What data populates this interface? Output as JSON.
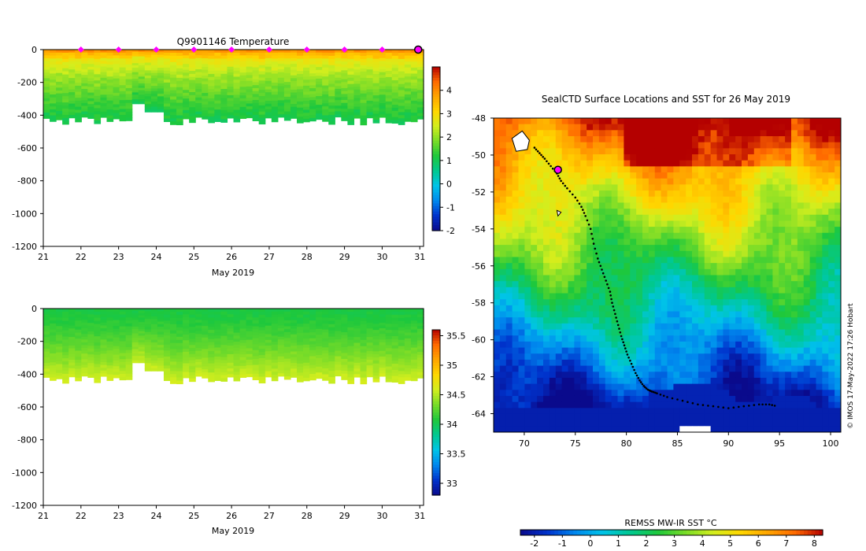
{
  "colors": {
    "temp_scale": [
      "#0a0a8c",
      "#0033cc",
      "#0088ee",
      "#00c4e8",
      "#00c890",
      "#1ec83c",
      "#78dc28",
      "#d2ee1e",
      "#ffd700",
      "#ffa500",
      "#ff6a00",
      "#b40000"
    ],
    "marker": "#ff00ff"
  },
  "chart_data": [
    {
      "type": "heatmap",
      "title": "Q9901146  Temperature",
      "xlabel": "May 2019",
      "ylabel": "",
      "x_ticks": [
        "21",
        "22",
        "23",
        "24",
        "25",
        "26",
        "27",
        "28",
        "29",
        "30",
        "31"
      ],
      "y_ticks": [
        "0",
        "-200",
        "-400",
        "-600",
        "-800",
        "-1000",
        "-1200"
      ],
      "xlim": [
        21,
        31.1
      ],
      "ylim": [
        -1200,
        0
      ],
      "colorbar_ticks": [
        "4",
        "3",
        "2",
        "1",
        "0",
        "-1",
        "-2"
      ],
      "colorbar_range": [
        -2,
        5
      ],
      "profile_markers": [
        22,
        23,
        24,
        25,
        26,
        27,
        28,
        29,
        30
      ],
      "current_marker": 31
    },
    {
      "type": "heatmap",
      "title": "",
      "xlabel": "May 2019",
      "ylabel": "",
      "x_ticks": [
        "21",
        "22",
        "23",
        "24",
        "25",
        "26",
        "27",
        "28",
        "29",
        "30",
        "31"
      ],
      "y_ticks": [
        "0",
        "-200",
        "-400",
        "-600",
        "-800",
        "-1000",
        "-1200"
      ],
      "xlim": [
        21,
        31.1
      ],
      "ylim": [
        -1200,
        0
      ],
      "colorbar_ticks": [
        "35.5",
        "35",
        "34.5",
        "34",
        "33.5",
        "33"
      ],
      "colorbar_range": [
        32.8,
        35.6
      ]
    },
    {
      "type": "heatmap",
      "title": "SealCTD Surface Locations and SST for 26 May 2019",
      "xlabel": "",
      "ylabel": "",
      "x_ticks": [
        "70",
        "75",
        "80",
        "85",
        "90",
        "95",
        "100"
      ],
      "y_ticks": [
        "-48",
        "-50",
        "-52",
        "-54",
        "-56",
        "-58",
        "-60",
        "-62",
        "-64"
      ],
      "xlim": [
        67,
        101
      ],
      "ylim": [
        -65,
        -48
      ],
      "colorbar_label": "REMSS MW-IR SST °C",
      "colorbar_ticks": [
        "-2",
        "-1",
        "0",
        "1",
        "2",
        "3",
        "4",
        "5",
        "6",
        "7",
        "8"
      ],
      "colorbar_range": [
        -2.5,
        8.3
      ],
      "track_lon": [
        71.0,
        71.5,
        72.0,
        72.6,
        73.2,
        73.6,
        74.2,
        75.0,
        75.6,
        76.0,
        76.5,
        76.8,
        77.2,
        77.6,
        78.0,
        78.4,
        78.6,
        78.9,
        79.2,
        79.5,
        79.8,
        80.1,
        80.5,
        80.9,
        81.3,
        81.7,
        82.1,
        82.5,
        83.0,
        84.0,
        85.5,
        87.0,
        88.5,
        90.0,
        91.5,
        93.0,
        94.0,
        94.8
      ],
      "track_lat": [
        -49.6,
        -49.9,
        -50.2,
        -50.6,
        -51.0,
        -51.4,
        -51.8,
        -52.3,
        -52.8,
        -53.3,
        -54.0,
        -54.8,
        -55.6,
        -56.2,
        -56.8,
        -57.4,
        -58.0,
        -58.6,
        -59.2,
        -59.8,
        -60.3,
        -60.8,
        -61.3,
        -61.8,
        -62.2,
        -62.5,
        -62.7,
        -62.8,
        -62.9,
        -63.1,
        -63.3,
        -63.5,
        -63.6,
        -63.7,
        -63.6,
        -63.5,
        -63.5,
        -63.6
      ],
      "last_position": [
        73.3,
        -50.8
      ],
      "credit": "© IMOS 17-May-2022 17:26 Hobart"
    }
  ]
}
